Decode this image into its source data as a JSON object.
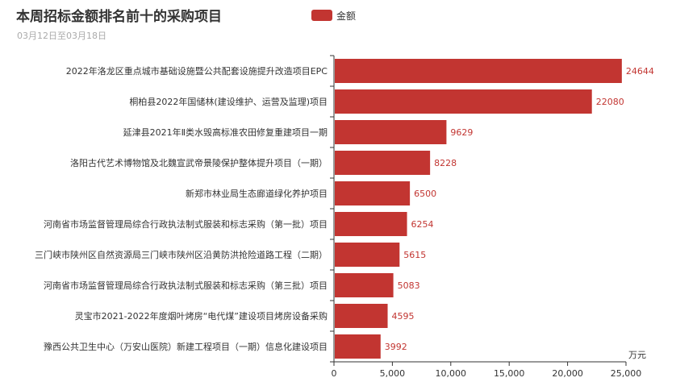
{
  "header": {
    "title": "本周招标金额排名前十的采购项目",
    "subtitle": "03月12日至03月18日"
  },
  "legend": {
    "label": "金额",
    "color": "#c23531"
  },
  "chart_data": {
    "type": "bar",
    "orientation": "horizontal",
    "categories": [
      "2022年洛龙区重点城市基础设施暨公共配套设施提升改造项目EPC",
      "桐柏县2022年国储林(建设维护、运营及监理)项目",
      "延津县2021年Ⅱ类水毁高标准农田修复重建项目一期",
      "洛阳古代艺术博物馆及北魏宣武帝景陵保护整体提升项目（一期）",
      "新郑市林业局生态廊道绿化养护项目",
      "河南省市场监督管理局综合行政执法制式服装和标志采购（第一批）项目",
      "三门峡市陕州区自然资源局三门峡市陕州区沿黄防洪抢险道路工程（二期）",
      "河南省市场监督管理局综合行政执法制式服装和标志采购（第三批）项目",
      "灵宝市2021-2022年度烟叶烤房“电代煤”建设项目烤房设备采购",
      "豫西公共卫生中心（万安山医院）新建工程项目（一期）信息化建设项目"
    ],
    "series": [
      {
        "name": "金额",
        "color": "#c23531",
        "values": [
          24644,
          22080,
          9629,
          8228,
          6500,
          6254,
          5615,
          5083,
          4595,
          3992
        ]
      }
    ],
    "x_unit": "万元",
    "xlim": [
      0,
      25000
    ],
    "x_ticks": [
      "0",
      "5,000",
      "10,000",
      "15,000",
      "20,000",
      "25,000"
    ],
    "legend_position": "top",
    "grid": false
  }
}
